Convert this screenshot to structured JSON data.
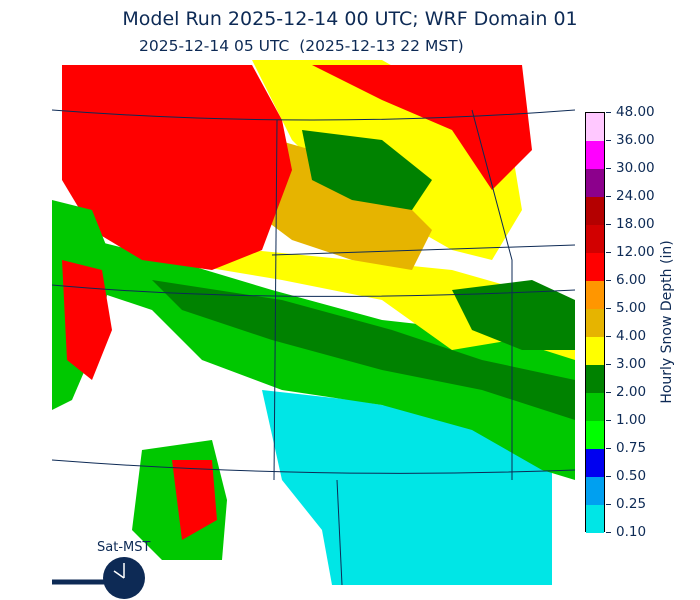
{
  "title": "Model Run 2025-12-14 00 UTC; WRF Domain 01",
  "subtitle": "2025-12-14 05 UTC  (2025-12-13 22 MST)",
  "colorbar": {
    "label": "Hourly Snow Depth (in)",
    "ticks": [
      "0.10",
      "0.25",
      "0.50",
      "0.75",
      "1.00",
      "2.00",
      "3.00",
      "4.00",
      "5.00",
      "6.00",
      "12.00",
      "18.00",
      "24.00",
      "30.00",
      "36.00",
      "48.00"
    ],
    "colors": [
      "#00e6e6",
      "#00a0f0",
      "#0000f0",
      "#00ff00",
      "#00c800",
      "#008200",
      "#ffff00",
      "#e6b400",
      "#ff9600",
      "#ff0000",
      "#d20000",
      "#b40000",
      "#8c008c",
      "#ff00ff",
      "#ffc8ff"
    ]
  },
  "clock": {
    "label": "Sat-MST",
    "icon": "clock-icon"
  }
}
